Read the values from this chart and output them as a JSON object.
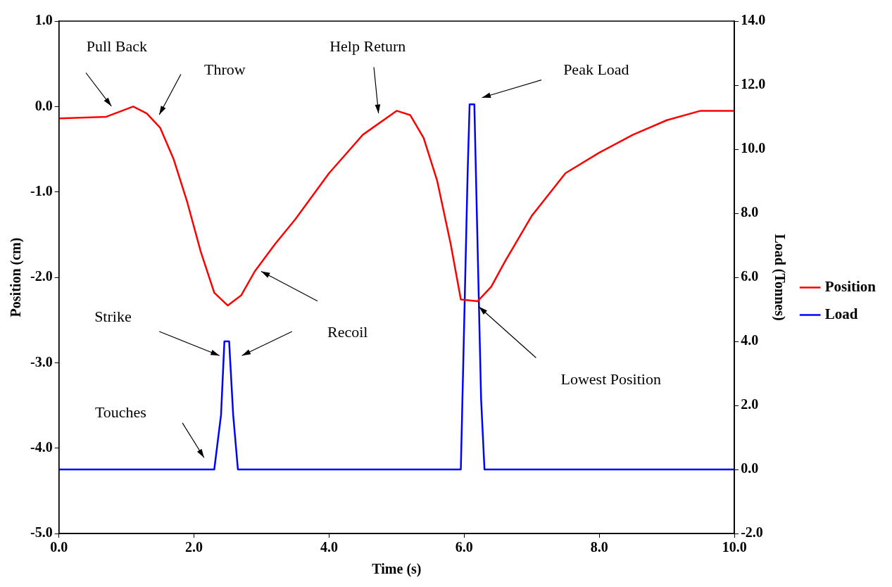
{
  "chart_data": {
    "type": "line",
    "xlabel": "Time (s)",
    "ylabel": "Position (cm)",
    "y2label": "Load (Tonnes)",
    "xlim": [
      0,
      10
    ],
    "xticks": [
      {
        "value": 0,
        "label": "0.0"
      },
      {
        "value": 2,
        "label": "2.0"
      },
      {
        "value": 4,
        "label": "4.0"
      },
      {
        "value": 6,
        "label": "6.0"
      },
      {
        "value": 8,
        "label": "8.0"
      },
      {
        "value": 10,
        "label": "10.0"
      }
    ],
    "ylim": [
      -5,
      1
    ],
    "yticks": [
      {
        "value": -5,
        "label": "-5.0"
      },
      {
        "value": -4,
        "label": "-4.0"
      },
      {
        "value": -3,
        "label": "-3.0"
      },
      {
        "value": -2,
        "label": "-2.0"
      },
      {
        "value": -1,
        "label": "-1.0"
      },
      {
        "value": 0,
        "label": "0.0"
      },
      {
        "value": 1,
        "label": "1.0"
      }
    ],
    "y2lim": [
      -2,
      14
    ],
    "y2ticks": [
      {
        "value": -2,
        "label": "-2.0"
      },
      {
        "value": 0,
        "label": "0.0"
      },
      {
        "value": 2,
        "label": "2.0"
      },
      {
        "value": 4,
        "label": "4.0"
      },
      {
        "value": 6,
        "label": "6.0"
      },
      {
        "value": 8,
        "label": "8.0"
      },
      {
        "value": 10,
        "label": "10.0"
      },
      {
        "value": 12,
        "label": "12.0"
      },
      {
        "value": 14,
        "label": "14.0"
      }
    ],
    "grid": false,
    "legend": "right",
    "marker": "none",
    "line_style": "solid",
    "series": [
      {
        "name": "Position",
        "color": "#ff0000",
        "x": [
          0,
          0.7,
          0.9,
          1.1,
          1.3,
          1.5,
          1.7,
          1.9,
          2.1,
          2.3,
          2.5,
          2.7,
          2.9,
          3.2,
          3.5,
          4,
          4.5,
          5,
          5.2,
          5.4,
          5.6,
          5.8,
          5.95,
          6.2,
          6.4,
          6.6,
          7,
          7.5,
          8,
          8.5,
          9,
          9.5,
          10
        ],
        "values": [
          -0.14,
          -0.12,
          -0.06,
          0,
          -0.08,
          -0.25,
          -0.62,
          -1.12,
          -1.7,
          -2.18,
          -2.33,
          -2.21,
          -1.93,
          -1.61,
          -1.32,
          -0.78,
          -0.33,
          -0.05,
          -0.1,
          -0.37,
          -0.87,
          -1.61,
          -2.26,
          -2.28,
          -2.11,
          -1.82,
          -1.28,
          -0.78,
          -0.54,
          -0.33,
          -0.16,
          -0.05,
          -0.05
        ]
      },
      {
        "name": "Load",
        "color": "#0000ff",
        "axis": "y2",
        "x": [
          0,
          2.3,
          2.4,
          2.45,
          2.52,
          2.58,
          2.65,
          5.95,
          6.05,
          6.08,
          6.15,
          6.25,
          6.3,
          10
        ],
        "values": [
          0,
          0,
          1.7,
          4,
          4,
          1.7,
          0,
          0,
          9.2,
          11.4,
          11.4,
          2.2,
          0,
          0
        ]
      }
    ],
    "annotations": [
      "Pull Back",
      "Throw",
      "Help Return",
      "Peak Load",
      "Recoil",
      "Strike",
      "Touches",
      "Lowest Position"
    ]
  }
}
